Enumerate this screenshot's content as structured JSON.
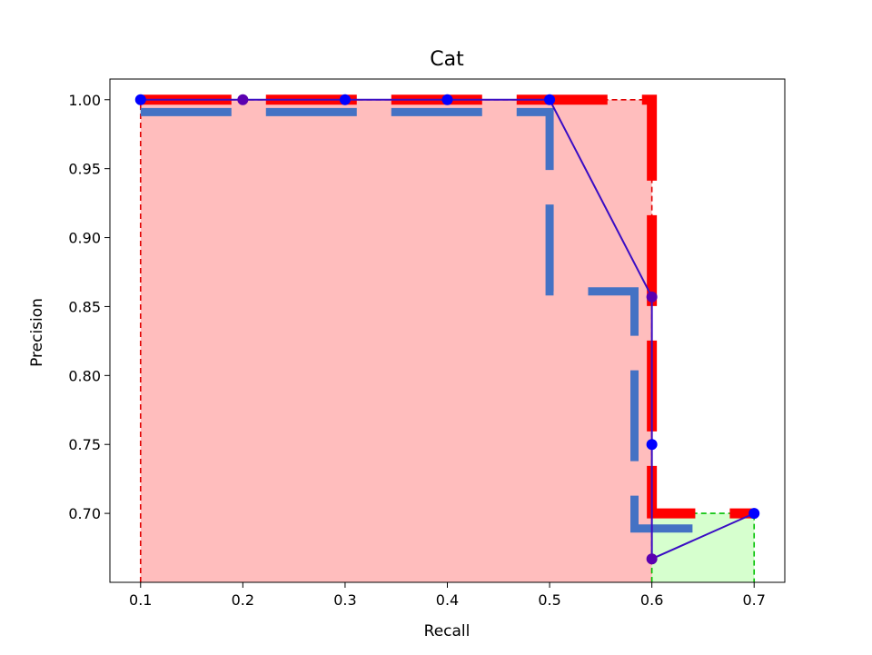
{
  "chart_data": {
    "type": "line",
    "title": "Cat",
    "xlabel": "Recall",
    "ylabel": "Precision",
    "xlim": [
      0.07,
      0.73
    ],
    "ylim": [
      0.65,
      1.015
    ],
    "xticks": [
      0.1,
      0.2,
      0.3,
      0.4,
      0.5,
      0.6,
      0.7
    ],
    "xtick_labels": [
      "0.1",
      "0.2",
      "0.3",
      "0.4",
      "0.5",
      "0.6",
      "0.7"
    ],
    "yticks": [
      0.7,
      0.75,
      0.8,
      0.85,
      0.9,
      0.95,
      1.0
    ],
    "ytick_labels": [
      "0.70",
      "0.75",
      "0.80",
      "0.85",
      "0.90",
      "0.95",
      "1.00"
    ],
    "grid": false,
    "colors": {
      "pr_line": "#3a0dc4",
      "pr_points": "#0000ff",
      "pr_points_overlap": "#5a00b0",
      "step_blue": "#4472c4",
      "interp_red": "#ff0000",
      "fill_red": "#ffbdbd",
      "fill_green": "#d6ffce",
      "box_red": "#e00000",
      "box_green": "#00c000"
    },
    "series": [
      {
        "style": "solid-line-with-markers",
        "x": [
          0.1,
          0.2,
          0.3,
          0.4,
          0.5,
          0.6,
          0.6,
          0.6,
          0.7
        ],
        "y": [
          1.0,
          1.0,
          1.0,
          1.0,
          1.0,
          0.857,
          0.75,
          0.667,
          0.7
        ]
      },
      {
        "style": "thick-dashed-step",
        "x": [
          0.1,
          0.5,
          0.5,
          0.583,
          0.583,
          0.6,
          0.6,
          0.67
        ],
        "y": [
          0.991,
          0.991,
          0.861,
          0.861,
          0.689,
          0.689,
          0.689,
          0.689
        ]
      },
      {
        "style": "thick-dashed-interpolated",
        "x": [
          0.1,
          0.6,
          0.6,
          0.7
        ],
        "y": [
          1.0,
          1.0,
          0.7,
          0.7
        ]
      }
    ],
    "areas": [
      {
        "color": "red",
        "x": [
          0.1,
          0.6
        ],
        "y_top": 1.0
      },
      {
        "color": "green",
        "x": [
          0.6,
          0.7
        ],
        "y_top": 0.7
      }
    ]
  }
}
